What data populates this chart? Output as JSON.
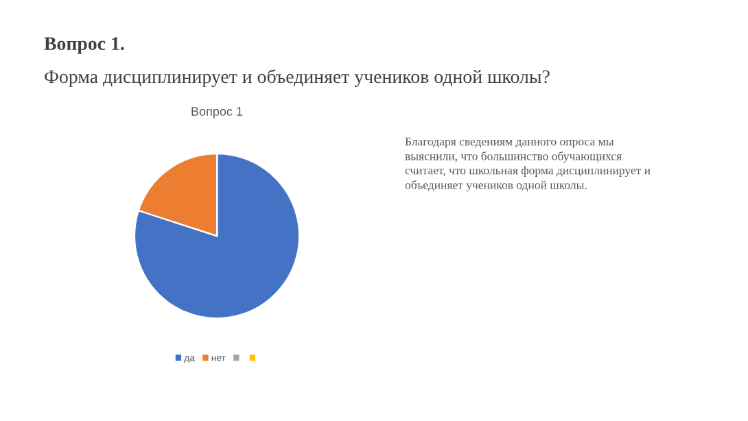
{
  "chart_data": {
    "type": "pie",
    "title": "Вопрос 1.",
    "subtitle": "Форма дисциплинирует и объединяет учеников одной школы?",
    "annotations": [
      "Вопрос 1",
      "Благодаря сведениям данного опроса мы\nвыяснили, что большинство обучающихся\nсчитает, что школьная форма дисциплинирует и\nобъединяет учеников одной школы."
    ],
    "categories": [
      "да",
      "нет",
      null,
      null
    ],
    "values": [
      80,
      20,
      0,
      0
    ],
    "colors": [
      "#4472c4",
      "#ed7d31",
      "#a5a5a5",
      "#ffc000"
    ],
    "legend": "bottom"
  }
}
